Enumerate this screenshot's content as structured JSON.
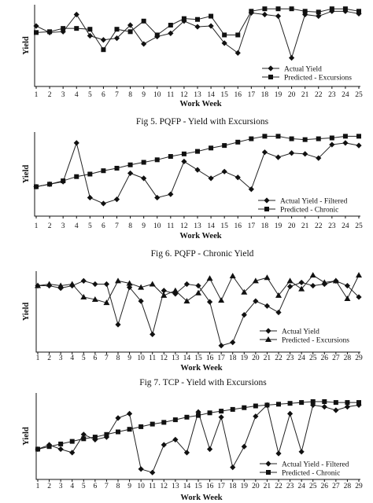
{
  "chart_data": [
    {
      "type": "line",
      "xlabel": "Work Week",
      "ylabel": "Yield",
      "x": [
        1,
        2,
        3,
        4,
        5,
        6,
        7,
        8,
        9,
        10,
        11,
        12,
        13,
        14,
        15,
        16,
        17,
        18,
        19,
        20,
        21,
        22,
        23,
        24,
        25
      ],
      "ylim": [
        0,
        100
      ],
      "series": [
        {
          "name": "Actual Yield",
          "marker": "diamond",
          "values": [
            74,
            66,
            67,
            88,
            62,
            57,
            59,
            75,
            52,
            61,
            65,
            80,
            73,
            74,
            53,
            41,
            90,
            88,
            86,
            35,
            88,
            86,
            92,
            92,
            89
          ]
        },
        {
          "name": "Predicted - Excursions",
          "marker": "square",
          "values": [
            66,
            67,
            71,
            71,
            70,
            45,
            70,
            67,
            80,
            63,
            75,
            83,
            82,
            86,
            63,
            63,
            92,
            95,
            95,
            95,
            92,
            91,
            95,
            95,
            92
          ]
        }
      ],
      "legend": "bottom-right",
      "caption": "Fig 5. PQFP - Yield with Excursions"
    },
    {
      "type": "line",
      "xlabel": "Work Week",
      "ylabel": "Yield",
      "x": [
        1,
        2,
        3,
        4,
        5,
        6,
        7,
        8,
        9,
        10,
        11,
        12,
        13,
        14,
        15,
        16,
        17,
        18,
        19,
        20,
        21,
        22,
        23,
        24,
        25
      ],
      "ylim": [
        0,
        100
      ],
      "series": [
        {
          "name": "Actual Yield - Filtered",
          "marker": "diamond",
          "values": [
            35,
            38,
            41,
            87,
            22,
            15,
            20,
            51,
            45,
            22,
            26,
            65,
            55,
            45,
            53,
            46,
            32,
            76,
            70,
            75,
            74,
            69,
            85,
            87,
            84
          ]
        },
        {
          "name": "Predicted - Chronic",
          "marker": "square",
          "values": [
            35,
            38,
            42,
            47,
            50,
            54,
            57,
            61,
            64,
            67,
            71,
            74,
            77,
            81,
            84,
            88,
            92,
            95,
            95,
            92,
            91,
            92,
            93,
            95,
            95
          ]
        }
      ],
      "legend": "bottom-right",
      "caption": "Fig 6. PQFP - Chronic Yield"
    },
    {
      "type": "line",
      "xlabel": "Work Week",
      "ylabel": "Yield",
      "x": [
        1,
        2,
        3,
        4,
        5,
        6,
        7,
        8,
        9,
        10,
        11,
        12,
        13,
        14,
        15,
        16,
        17,
        18,
        19,
        20,
        21,
        22,
        23,
        24,
        25,
        26,
        27,
        28,
        29
      ],
      "ylim": [
        0,
        100
      ],
      "series": [
        {
          "name": "Actual Yield",
          "marker": "diamond",
          "values": [
            82,
            82,
            79,
            82,
            88,
            84,
            84,
            34,
            80,
            63,
            22,
            76,
            72,
            84,
            82,
            62,
            8,
            12,
            46,
            63,
            57,
            49,
            81,
            86,
            82,
            84,
            88,
            82,
            68
          ]
        },
        {
          "name": "Predicted - Excursions",
          "marker": "triangle",
          "values": [
            82,
            84,
            82,
            84,
            68,
            65,
            61,
            88,
            85,
            80,
            84,
            70,
            76,
            63,
            73,
            91,
            64,
            94,
            74,
            88,
            92,
            70,
            88,
            78,
            95,
            86,
            88,
            66,
            95
          ]
        }
      ],
      "legend": "bottom-right",
      "caption": "Fig 7. TCP - Yield with Excursions"
    },
    {
      "type": "line",
      "xlabel": "Work Week",
      "ylabel": "Yield",
      "x": [
        1,
        2,
        3,
        4,
        5,
        6,
        7,
        8,
        9,
        10,
        11,
        12,
        13,
        14,
        15,
        16,
        17,
        18,
        19,
        20,
        21,
        22,
        23,
        24,
        25,
        26,
        27,
        28,
        29
      ],
      "ylim": [
        0,
        100
      ],
      "series": [
        {
          "name": "Actual Yield - Filtered",
          "marker": "diamond",
          "values": [
            35,
            40,
            35,
            31,
            52,
            46,
            49,
            71,
            76,
            12,
            8,
            40,
            46,
            31,
            78,
            35,
            72,
            14,
            38,
            73,
            86,
            30,
            76,
            32,
            86,
            84,
            80,
            84,
            86
          ]
        },
        {
          "name": "Predicted - Chronic",
          "marker": "square",
          "values": [
            35,
            38,
            41,
            44,
            47,
            49,
            52,
            55,
            58,
            61,
            64,
            66,
            69,
            72,
            74,
            77,
            79,
            81,
            83,
            85,
            86,
            87,
            88,
            89,
            90,
            90,
            89,
            89,
            89
          ]
        }
      ],
      "legend": "bottom-right",
      "caption": ""
    }
  ]
}
